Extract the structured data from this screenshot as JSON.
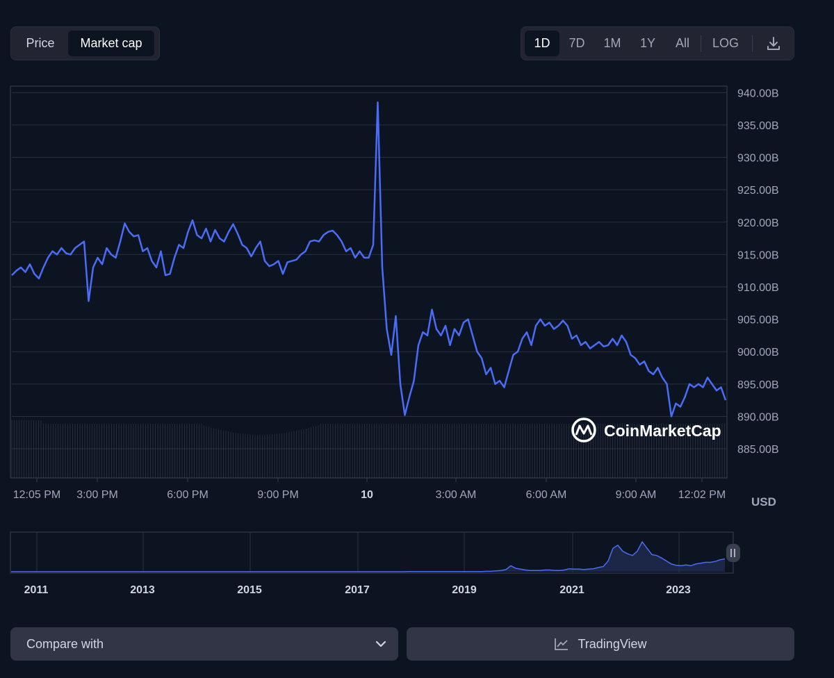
{
  "toggle": {
    "price_label": "Price",
    "market_cap_label": "Market cap",
    "active": "market_cap"
  },
  "ranges": {
    "items": [
      "1D",
      "7D",
      "1M",
      "1Y",
      "All"
    ],
    "active": "1D",
    "log_label": "LOG",
    "download_icon": "download-icon"
  },
  "currency_label": "USD",
  "watermark": "CoinMarketCap",
  "compare": {
    "label": "Compare with",
    "icon": "chevron-down-icon"
  },
  "tradingview": {
    "label": "TradingView",
    "icon": "chart-line-icon"
  },
  "colors": {
    "line": "#4a6cf7",
    "background": "#0d1421",
    "panel": "#222531",
    "button": "#323546"
  },
  "chart_data": {
    "type": "line",
    "y_unit": "B",
    "ylim": [
      880.5,
      941
    ],
    "y_ticks": [
      "940.00B",
      "935.00B",
      "930.00B",
      "925.00B",
      "920.00B",
      "915.00B",
      "910.00B",
      "905.00B",
      "900.00B",
      "895.00B",
      "890.00B",
      "885.00B"
    ],
    "x_ticks": [
      "12:05 PM",
      "3:00 PM",
      "6:00 PM",
      "9:00 PM",
      "10",
      "3:00 AM",
      "6:00 AM",
      "9:00 AM",
      "12:02 PM"
    ],
    "grid": true,
    "series": [
      {
        "values": [
          911.8,
          912.5,
          913.0,
          912.3,
          913.5,
          912.0,
          911.3,
          913.0,
          914.5,
          915.5,
          915.0,
          916.0,
          915.2,
          915.0,
          916.0,
          916.5,
          917.0,
          907.8,
          913.0,
          914.5,
          913.5,
          916.0,
          915.0,
          914.5,
          917.0,
          919.8,
          918.5,
          917.8,
          918.0,
          915.5,
          916.0,
          914.0,
          913.0,
          915.5,
          911.8,
          912.0,
          914.5,
          916.5,
          916.0,
          918.5,
          920.3,
          918.0,
          917.5,
          919.0,
          917.0,
          918.8,
          917.5,
          917.0,
          918.5,
          919.7,
          918.2,
          916.5,
          916.0,
          914.7,
          916.0,
          917.0,
          914.0,
          913.2,
          913.5,
          914.0,
          912.0,
          913.8,
          914.0,
          914.2,
          915.0,
          915.5,
          917.0,
          917.2,
          917.0,
          918.0,
          918.5,
          918.7,
          918.0,
          917.0,
          915.5,
          916.0,
          914.5,
          915.5,
          914.5,
          914.5,
          916.5,
          938.5,
          913.0,
          903.5,
          899.5,
          905.5,
          895.0,
          890.2,
          893.0,
          895.5,
          901.0,
          903.0,
          902.5,
          906.5,
          903.5,
          902.5,
          904.0,
          901.0,
          903.5,
          902.5,
          904.5,
          905.0,
          902.5,
          900.0,
          899.0,
          896.5,
          897.5,
          895.0,
          895.5,
          894.5,
          897.0,
          899.5,
          900.0,
          902.0,
          903.0,
          901.0,
          904.0,
          905.0,
          904.0,
          904.5,
          903.5,
          904.0,
          904.8,
          904.0,
          902.0,
          902.5,
          901.0,
          901.5,
          900.5,
          901.0,
          901.5,
          900.8,
          901.0,
          902.0,
          901.0,
          902.5,
          901.5,
          899.5,
          899.0,
          898.0,
          898.5,
          897.0,
          896.5,
          897.5,
          896.0,
          895.0,
          890.0,
          892.0,
          891.5,
          893.0,
          895.0,
          894.5,
          895.0,
          894.5,
          896.0,
          895.0,
          894.0,
          894.5,
          892.5
        ]
      }
    ]
  },
  "overview_data": {
    "type": "area",
    "x_ticks": [
      "2011",
      "2013",
      "2015",
      "2017",
      "2019",
      "2021",
      "2023"
    ],
    "values": [
      0,
      0,
      0,
      0,
      0,
      0,
      0,
      0,
      0,
      0,
      0,
      0,
      0,
      0,
      0,
      0,
      0,
      0,
      0,
      0,
      0,
      0,
      0,
      0,
      0.5,
      0.5,
      0.5,
      0.5,
      0.5,
      0.5,
      0.5,
      0.5,
      0.5,
      0.5,
      0.5,
      0.5,
      0.5,
      0.5,
      0.5,
      0.5,
      1,
      1,
      2,
      3,
      5,
      14,
      8,
      6,
      4,
      3,
      3,
      3,
      4,
      4,
      3,
      3,
      4,
      7,
      6,
      6,
      5,
      6,
      7,
      10,
      12,
      25,
      55,
      62,
      48,
      42,
      38,
      48,
      70,
      55,
      40,
      38,
      32,
      25,
      18,
      15,
      14,
      16,
      14,
      18,
      20,
      22,
      22,
      24,
      28,
      30
    ]
  }
}
